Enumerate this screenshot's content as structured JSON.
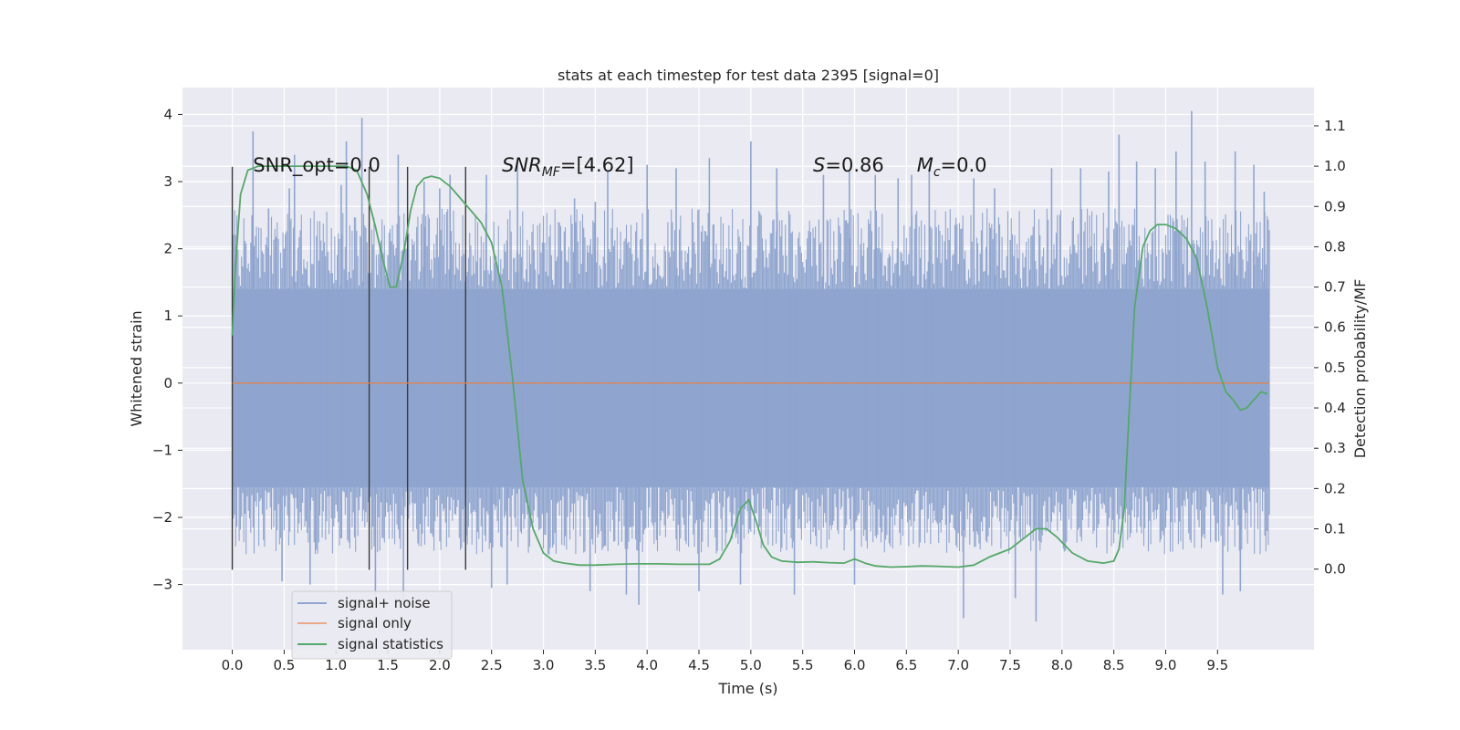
{
  "chart_data": {
    "type": "line",
    "title": "stats at each timestep for test data 2395 [signal=0]",
    "xlabel": "Time (s)",
    "ylabel": "Whitened strain",
    "y2label": "Detection probability/MF",
    "xlim": [
      -0.48,
      10.43
    ],
    "ylim": [
      -3.97,
      4.4
    ],
    "y2lim": [
      -0.2,
      1.195
    ],
    "xticks": [
      0.0,
      0.5,
      1.0,
      1.5,
      2.0,
      2.5,
      3.0,
      3.5,
      4.0,
      4.5,
      5.0,
      5.5,
      6.0,
      6.5,
      7.0,
      7.5,
      8.0,
      8.5,
      9.0,
      9.5
    ],
    "xtick_labels": [
      "0.0",
      "0.5",
      "1.0",
      "1.5",
      "2.0",
      "2.5",
      "3.0",
      "3.5",
      "4.0",
      "4.5",
      "5.0",
      "5.5",
      "6.0",
      "6.5",
      "7.0",
      "7.5",
      "8.0",
      "8.5",
      "9.0",
      "9.5"
    ],
    "yticks": [
      4,
      3,
      2,
      1,
      0,
      -1,
      -2,
      -3
    ],
    "ytick_labels": [
      "4",
      "3",
      "2",
      "1",
      "0",
      "−1",
      "−2",
      "−3"
    ],
    "y2ticks": [
      1.1,
      1.0,
      0.9,
      0.8,
      0.7,
      0.6,
      0.5,
      0.4,
      0.3,
      0.2,
      0.1,
      0.0
    ],
    "y2tick_labels": [
      "1.1",
      "1.0",
      "0.9",
      "0.8",
      "0.7",
      "0.6",
      "0.5",
      "0.4",
      "0.3",
      "0.2",
      "0.1",
      "0.0"
    ],
    "grid": true,
    "legend_position": "lower-left",
    "series": [
      {
        "name": "signal+ noise",
        "axis": "left",
        "color": "#8fa5cf",
        "x_range": [
          0.0,
          10.0
        ],
        "band_lower": -1.55,
        "band_upper": 1.4,
        "spikes": [
          [
            0.2,
            3.75
          ],
          [
            0.35,
            2.6
          ],
          [
            0.48,
            -2.95
          ],
          [
            0.55,
            2.9
          ],
          [
            0.6,
            3.4
          ],
          [
            0.75,
            -3.0
          ],
          [
            1.05,
            2.95
          ],
          [
            1.1,
            3.6
          ],
          [
            1.25,
            3.95
          ],
          [
            1.38,
            -3.2
          ],
          [
            1.6,
            3.4
          ],
          [
            1.65,
            -3.3
          ],
          [
            1.85,
            3.0
          ],
          [
            2.0,
            2.9
          ],
          [
            2.1,
            3.1
          ],
          [
            2.45,
            3.1
          ],
          [
            2.5,
            -3.05
          ],
          [
            2.65,
            -3.0
          ],
          [
            2.75,
            3.35
          ],
          [
            3.3,
            2.75
          ],
          [
            3.45,
            -3.1
          ],
          [
            3.5,
            2.7
          ],
          [
            3.62,
            3.15
          ],
          [
            3.8,
            -3.15
          ],
          [
            3.92,
            -3.3
          ],
          [
            4.0,
            3.25
          ],
          [
            4.28,
            3.2
          ],
          [
            4.5,
            -3.1
          ],
          [
            4.6,
            3.35
          ],
          [
            4.9,
            -3.0
          ],
          [
            5.0,
            3.6
          ],
          [
            5.25,
            3.2
          ],
          [
            5.42,
            -3.15
          ],
          [
            5.7,
            3.1
          ],
          [
            5.95,
            3.15
          ],
          [
            6.0,
            -3.0
          ],
          [
            6.2,
            3.1
          ],
          [
            6.42,
            3.05
          ],
          [
            6.55,
            3.1
          ],
          [
            6.72,
            3.2
          ],
          [
            7.05,
            -3.5
          ],
          [
            7.15,
            3.05
          ],
          [
            7.35,
            2.9
          ],
          [
            7.55,
            -3.2
          ],
          [
            7.75,
            -3.55
          ],
          [
            7.9,
            3.2
          ],
          [
            8.18,
            3.2
          ],
          [
            8.45,
            3.15
          ],
          [
            8.55,
            3.7
          ],
          [
            8.72,
            3.3
          ],
          [
            8.9,
            3.2
          ],
          [
            9.1,
            3.45
          ],
          [
            9.25,
            4.05
          ],
          [
            9.38,
            3.3
          ],
          [
            9.55,
            -3.15
          ],
          [
            9.67,
            3.45
          ],
          [
            9.72,
            -3.1
          ],
          [
            9.85,
            3.25
          ],
          [
            9.95,
            2.85
          ]
        ]
      },
      {
        "name": "signal only",
        "axis": "left",
        "color": "#dd8452",
        "x": [
          0.0,
          10.0
        ],
        "y": [
          0.0,
          0.0
        ]
      },
      {
        "name": "signal statistics",
        "axis": "right",
        "color": "#55a868",
        "x": [
          0.0,
          0.03,
          0.08,
          0.15,
          0.25,
          0.4,
          0.6,
          0.8,
          1.0,
          1.1,
          1.2,
          1.3,
          1.38,
          1.45,
          1.52,
          1.58,
          1.65,
          1.72,
          1.78,
          1.85,
          1.92,
          2.0,
          2.1,
          2.2,
          2.3,
          2.4,
          2.5,
          2.6,
          2.7,
          2.8,
          2.9,
          3.0,
          3.1,
          3.2,
          3.35,
          3.5,
          3.7,
          3.9,
          4.1,
          4.3,
          4.5,
          4.6,
          4.7,
          4.8,
          4.9,
          4.98,
          5.05,
          5.12,
          5.2,
          5.3,
          5.45,
          5.6,
          5.75,
          5.9,
          6.0,
          6.1,
          6.2,
          6.35,
          6.5,
          6.65,
          6.8,
          7.0,
          7.15,
          7.3,
          7.5,
          7.65,
          7.75,
          7.85,
          7.95,
          8.1,
          8.25,
          8.4,
          8.5,
          8.55,
          8.6,
          8.65,
          8.7,
          8.78,
          8.85,
          8.92,
          9.0,
          9.1,
          9.2,
          9.3,
          9.4,
          9.5,
          9.58,
          9.65,
          9.72,
          9.78,
          9.85,
          9.92,
          9.98
        ],
        "y": [
          0.58,
          0.75,
          0.93,
          0.99,
          1.0,
          1.0,
          1.0,
          1.0,
          1.0,
          1.0,
          0.99,
          0.93,
          0.85,
          0.77,
          0.7,
          0.7,
          0.78,
          0.89,
          0.95,
          0.97,
          0.975,
          0.97,
          0.95,
          0.92,
          0.89,
          0.86,
          0.81,
          0.7,
          0.48,
          0.22,
          0.1,
          0.04,
          0.02,
          0.015,
          0.01,
          0.01,
          0.012,
          0.013,
          0.013,
          0.012,
          0.012,
          0.012,
          0.025,
          0.07,
          0.15,
          0.172,
          0.12,
          0.06,
          0.03,
          0.02,
          0.017,
          0.018,
          0.016,
          0.015,
          0.025,
          0.015,
          0.008,
          0.005,
          0.006,
          0.008,
          0.007,
          0.005,
          0.01,
          0.03,
          0.05,
          0.08,
          0.1,
          0.1,
          0.08,
          0.04,
          0.02,
          0.015,
          0.02,
          0.05,
          0.15,
          0.4,
          0.65,
          0.8,
          0.84,
          0.855,
          0.855,
          0.845,
          0.82,
          0.77,
          0.65,
          0.5,
          0.44,
          0.42,
          0.395,
          0.4,
          0.42,
          0.44,
          0.435
        ]
      }
    ],
    "vlines": {
      "color": "#3a3a3a",
      "x": [
        0.0,
        1.32,
        1.69,
        2.25
      ],
      "y_from": -2.78,
      "y_to": 3.22
    },
    "annotations": [
      {
        "text": "SNR_opt=0.0",
        "x": 0.2,
        "y": 3.15,
        "math": false
      },
      {
        "text": "SNR",
        "sub": "MF",
        "rest": "=[4.62]",
        "x": 2.6,
        "y": 3.15,
        "math": true
      },
      {
        "text": "S",
        "sub": "",
        "rest": "=0.86",
        "x": 5.6,
        "y": 3.15,
        "math": true
      },
      {
        "text": "M",
        "sub": "c",
        "rest": "=0.0",
        "x": 6.6,
        "y": 3.15,
        "math": true
      }
    ]
  }
}
